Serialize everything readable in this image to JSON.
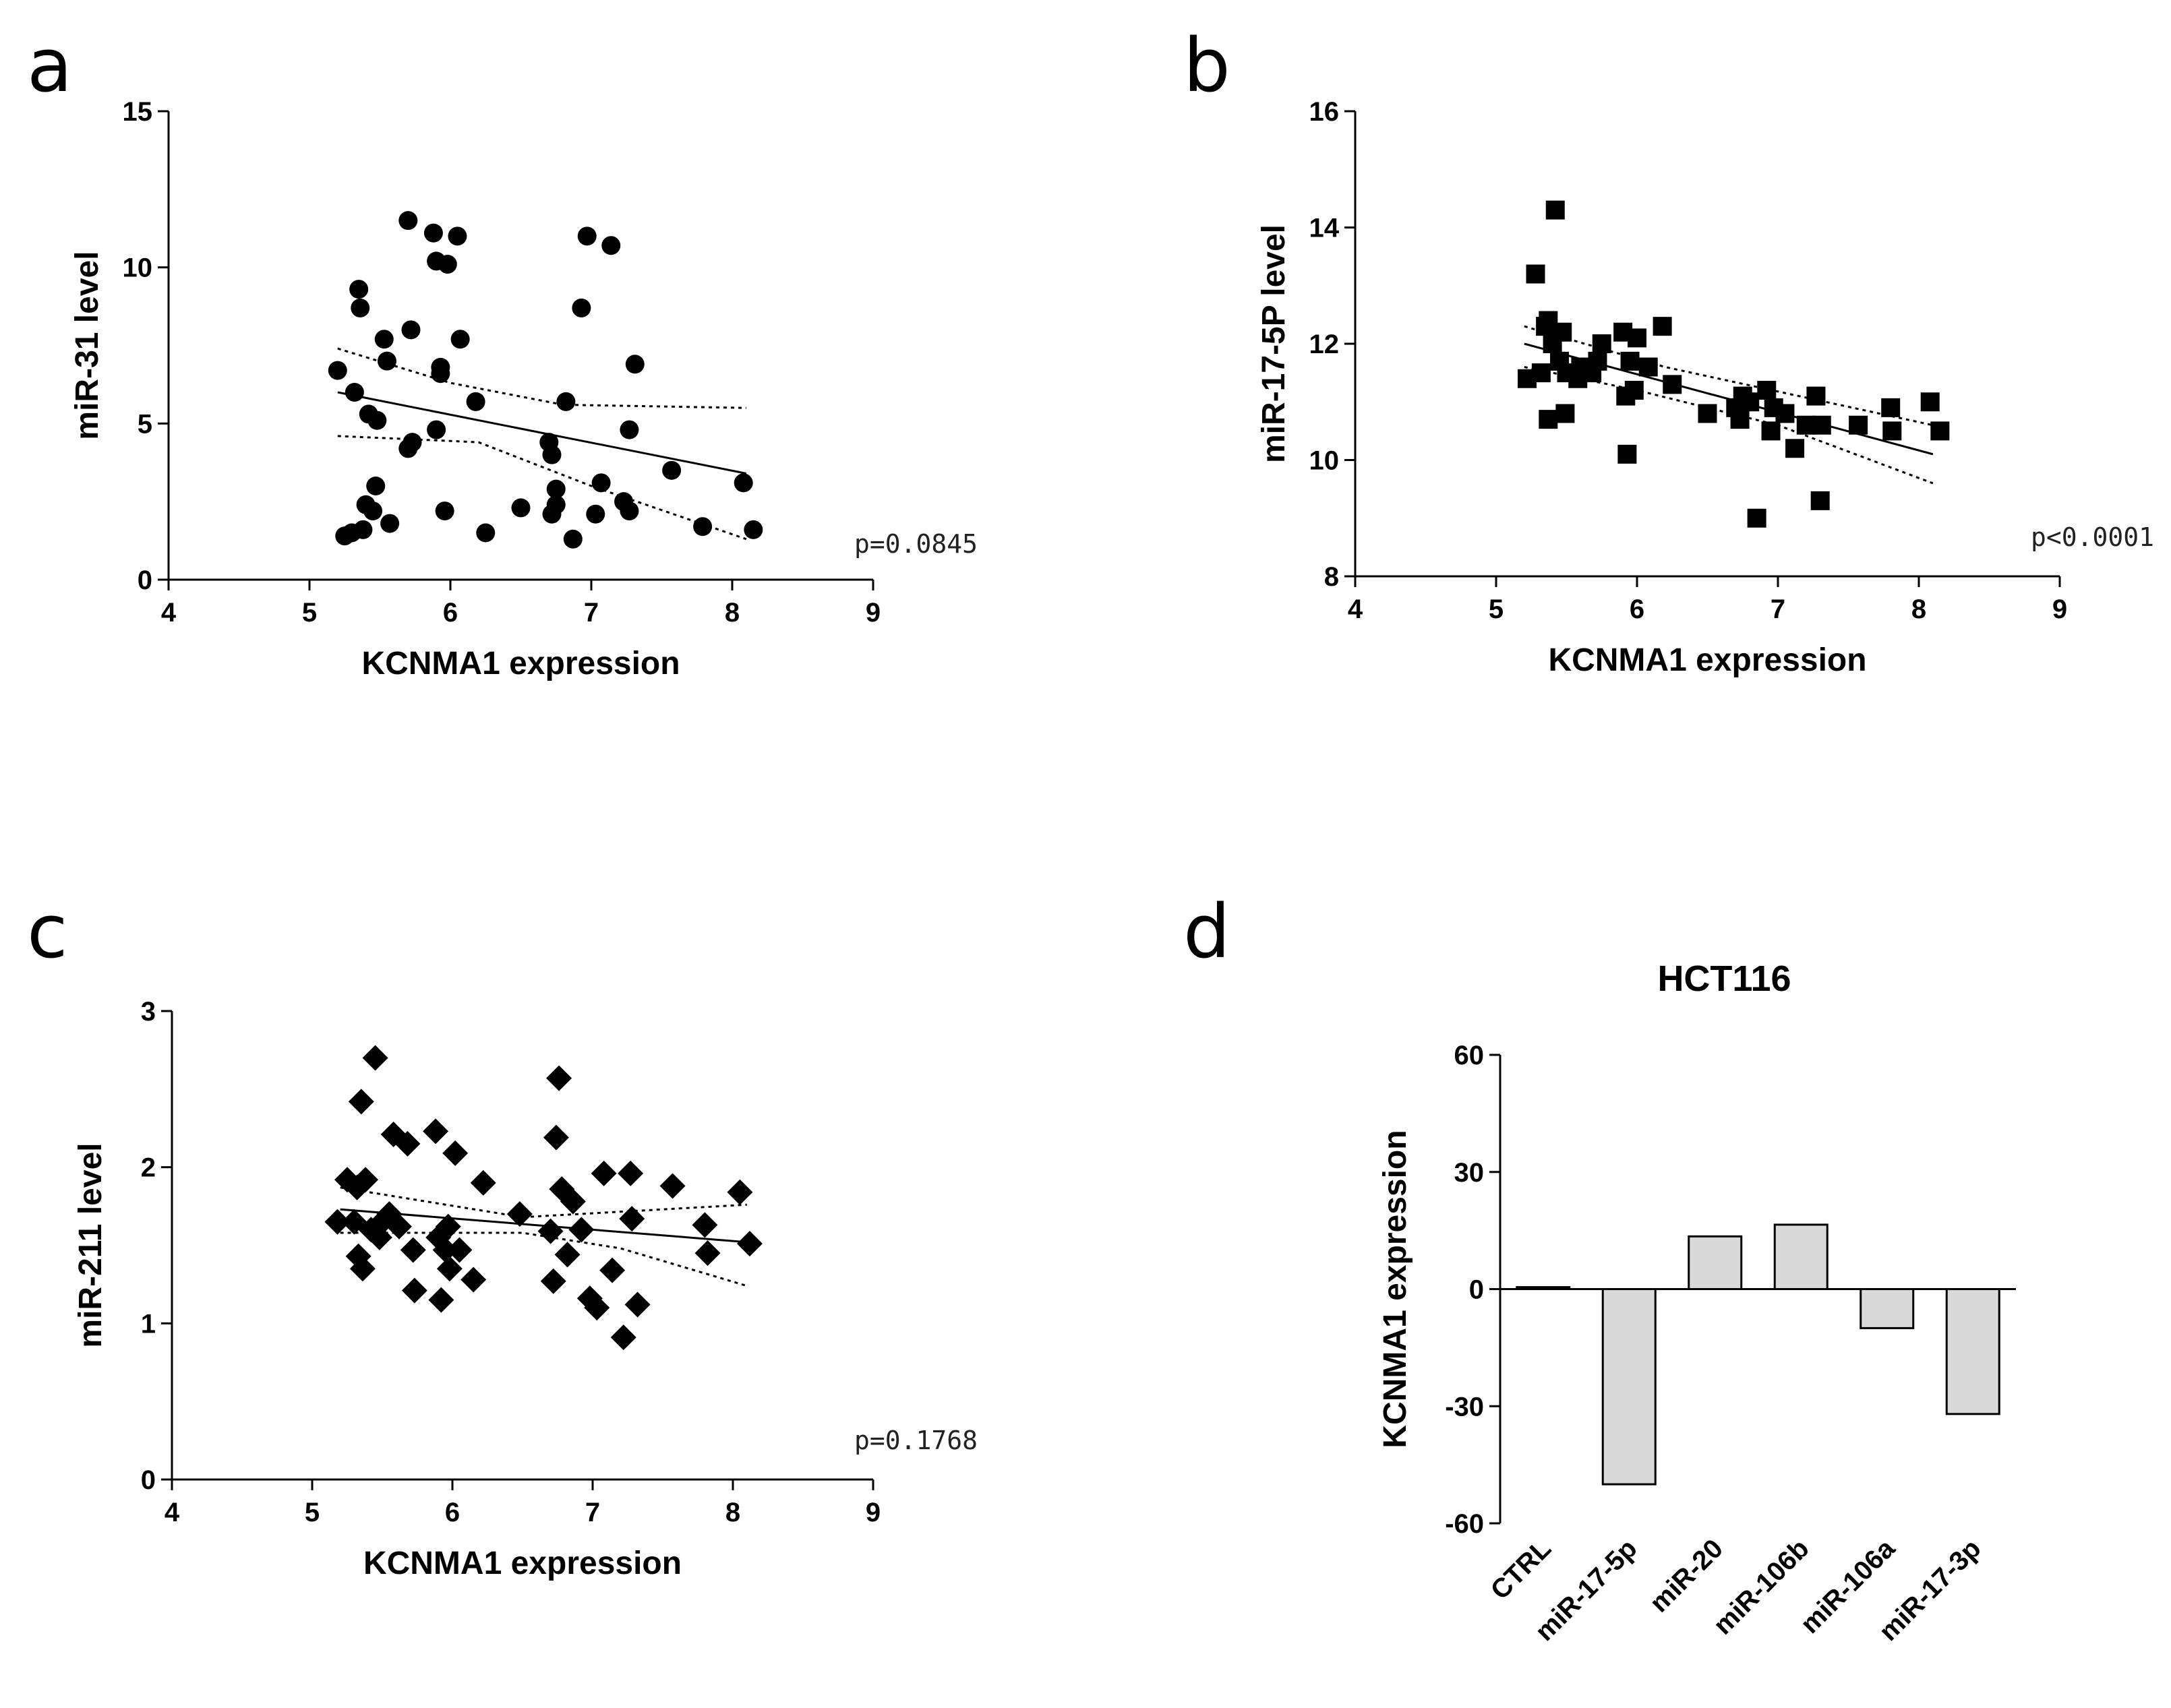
{
  "colors": {
    "marker": "#000000",
    "bar_fill": "#d9d9d9",
    "bar_stroke": "#000000"
  },
  "chart_data": [
    {
      "type": "scatter",
      "panel": "a",
      "xlabel": "KCNMA1 expression",
      "ylabel": "miR-31 level",
      "xlim": [
        4,
        9
      ],
      "ylim": [
        0,
        15
      ],
      "xticks": [
        4,
        5,
        6,
        7,
        8,
        9
      ],
      "yticks": [
        0,
        5,
        10,
        15
      ],
      "marker": "circle",
      "p_value": "p=0.0845",
      "fit": {
        "x0": 5.2,
        "y0": 6.0,
        "x1": 8.1,
        "y1": 3.4
      },
      "ci_upper": [
        [
          5.2,
          7.4
        ],
        [
          6.0,
          6.3
        ],
        [
          6.8,
          5.6
        ],
        [
          8.1,
          5.5
        ]
      ],
      "ci_lower": [
        [
          5.2,
          4.6
        ],
        [
          6.2,
          4.4
        ],
        [
          7.0,
          3.0
        ],
        [
          8.1,
          1.3
        ]
      ],
      "points": [
        [
          5.2,
          6.7
        ],
        [
          5.25,
          1.4
        ],
        [
          5.3,
          1.5
        ],
        [
          5.32,
          6.0
        ],
        [
          5.35,
          9.3
        ],
        [
          5.36,
          8.7
        ],
        [
          5.38,
          1.6
        ],
        [
          5.4,
          2.4
        ],
        [
          5.42,
          5.3
        ],
        [
          5.45,
          2.2
        ],
        [
          5.47,
          3.0
        ],
        [
          5.48,
          5.1
        ],
        [
          5.53,
          7.7
        ],
        [
          5.55,
          7.0
        ],
        [
          5.57,
          1.8
        ],
        [
          5.7,
          11.5
        ],
        [
          5.72,
          8.0
        ],
        [
          5.7,
          4.2
        ],
        [
          5.73,
          4.4
        ],
        [
          5.88,
          11.1
        ],
        [
          5.9,
          10.2
        ],
        [
          5.9,
          4.8
        ],
        [
          5.93,
          6.6
        ],
        [
          5.93,
          6.8
        ],
        [
          5.96,
          2.2
        ],
        [
          5.98,
          10.1
        ],
        [
          6.05,
          11.0
        ],
        [
          6.07,
          7.7
        ],
        [
          6.18,
          5.7
        ],
        [
          6.25,
          1.5
        ],
        [
          6.5,
          2.3
        ],
        [
          6.7,
          4.4
        ],
        [
          6.72,
          4.0
        ],
        [
          6.72,
          2.1
        ],
        [
          6.75,
          2.9
        ],
        [
          6.75,
          2.4
        ],
        [
          6.82,
          5.7
        ],
        [
          6.87,
          1.3
        ],
        [
          6.93,
          8.7
        ],
        [
          6.97,
          11.0
        ],
        [
          7.03,
          2.1
        ],
        [
          7.07,
          3.1
        ],
        [
          7.14,
          10.7
        ],
        [
          7.23,
          2.5
        ],
        [
          7.27,
          4.8
        ],
        [
          7.27,
          2.2
        ],
        [
          7.31,
          6.9
        ],
        [
          7.57,
          3.5
        ],
        [
          7.79,
          1.7
        ],
        [
          8.08,
          3.1
        ],
        [
          8.15,
          1.6
        ]
      ]
    },
    {
      "type": "scatter",
      "panel": "b",
      "xlabel": "KCNMA1 expression",
      "ylabel": "miR-17-5P level",
      "xlim": [
        4,
        9
      ],
      "ylim": [
        8,
        16
      ],
      "xticks": [
        4,
        5,
        6,
        7,
        8,
        9
      ],
      "yticks": [
        8,
        10,
        12,
        14,
        16
      ],
      "marker": "square",
      "p_value": "p<0.0001",
      "fit": {
        "x0": 5.2,
        "y0": 12.0,
        "x1": 8.1,
        "y1": 10.1
      },
      "ci_upper": [
        [
          5.2,
          12.3
        ],
        [
          6.2,
          11.6
        ],
        [
          8.1,
          10.6
        ]
      ],
      "ci_lower": [
        [
          5.2,
          11.6
        ],
        [
          6.0,
          11.2
        ],
        [
          7.0,
          10.6
        ],
        [
          8.1,
          9.6
        ]
      ],
      "points": [
        [
          5.22,
          11.4
        ],
        [
          5.28,
          13.2
        ],
        [
          5.32,
          11.5
        ],
        [
          5.35,
          12.3
        ],
        [
          5.37,
          12.4
        ],
        [
          5.37,
          10.7
        ],
        [
          5.4,
          12.0
        ],
        [
          5.42,
          14.3
        ],
        [
          5.45,
          11.7
        ],
        [
          5.47,
          12.2
        ],
        [
          5.49,
          10.8
        ],
        [
          5.5,
          11.5
        ],
        [
          5.58,
          11.4
        ],
        [
          5.6,
          11.6
        ],
        [
          5.68,
          11.5
        ],
        [
          5.72,
          11.7
        ],
        [
          5.75,
          12.0
        ],
        [
          5.9,
          12.2
        ],
        [
          5.92,
          11.1
        ],
        [
          5.93,
          10.1
        ],
        [
          5.95,
          11.7
        ],
        [
          5.98,
          11.2
        ],
        [
          6.0,
          12.1
        ],
        [
          6.08,
          11.6
        ],
        [
          6.18,
          12.3
        ],
        [
          6.25,
          11.3
        ],
        [
          6.5,
          10.8
        ],
        [
          6.7,
          10.9
        ],
        [
          6.73,
          10.7
        ],
        [
          6.75,
          11.1
        ],
        [
          6.8,
          11.0
        ],
        [
          6.85,
          9.0
        ],
        [
          6.92,
          11.2
        ],
        [
          6.95,
          10.5
        ],
        [
          6.97,
          10.9
        ],
        [
          7.05,
          10.8
        ],
        [
          7.12,
          10.2
        ],
        [
          7.2,
          10.6
        ],
        [
          7.27,
          11.1
        ],
        [
          7.3,
          9.3
        ],
        [
          7.31,
          10.6
        ],
        [
          7.57,
          10.6
        ],
        [
          7.8,
          10.9
        ],
        [
          7.81,
          10.5
        ],
        [
          8.08,
          11.0
        ],
        [
          8.15,
          10.5
        ]
      ]
    },
    {
      "type": "scatter",
      "panel": "c",
      "xlabel": "KCNMA1 expression",
      "ylabel": "miR-211 level",
      "xlim": [
        4,
        9
      ],
      "ylim": [
        0,
        3
      ],
      "xticks": [
        4,
        5,
        6,
        7,
        8,
        9
      ],
      "yticks": [
        0,
        1,
        2,
        3
      ],
      "marker": "diamond",
      "p_value": "p=0.1768",
      "fit": {
        "x0": 5.2,
        "y0": 1.73,
        "x1": 8.1,
        "y1": 1.52
      },
      "ci_upper": [
        [
          5.2,
          1.87
        ],
        [
          6.5,
          1.68
        ],
        [
          8.1,
          1.76
        ]
      ],
      "ci_lower": [
        [
          5.2,
          1.58
        ],
        [
          6.5,
          1.58
        ],
        [
          7.2,
          1.48
        ],
        [
          8.1,
          1.24
        ]
      ],
      "points": [
        [
          5.18,
          1.65
        ],
        [
          5.25,
          1.92
        ],
        [
          5.3,
          1.65
        ],
        [
          5.32,
          1.87
        ],
        [
          5.33,
          1.43
        ],
        [
          5.35,
          2.42
        ],
        [
          5.36,
          1.35
        ],
        [
          5.38,
          1.92
        ],
        [
          5.42,
          1.6
        ],
        [
          5.45,
          2.7
        ],
        [
          5.48,
          1.55
        ],
        [
          5.5,
          1.65
        ],
        [
          5.55,
          1.7
        ],
        [
          5.58,
          2.21
        ],
        [
          5.62,
          1.62
        ],
        [
          5.68,
          2.15
        ],
        [
          5.72,
          1.47
        ],
        [
          5.73,
          1.21
        ],
        [
          5.88,
          2.23
        ],
        [
          5.9,
          1.55
        ],
        [
          5.92,
          1.15
        ],
        [
          5.95,
          1.47
        ],
        [
          5.97,
          1.62
        ],
        [
          5.98,
          1.35
        ],
        [
          6.02,
          2.09
        ],
        [
          6.05,
          1.47
        ],
        [
          6.15,
          1.28
        ],
        [
          6.22,
          1.9
        ],
        [
          6.48,
          1.7
        ],
        [
          6.7,
          1.59
        ],
        [
          6.72,
          1.27
        ],
        [
          6.74,
          2.19
        ],
        [
          6.76,
          2.57
        ],
        [
          6.78,
          1.86
        ],
        [
          6.82,
          1.44
        ],
        [
          6.86,
          1.78
        ],
        [
          6.92,
          1.6
        ],
        [
          6.98,
          1.16
        ],
        [
          7.03,
          1.1
        ],
        [
          7.08,
          1.96
        ],
        [
          7.14,
          1.34
        ],
        [
          7.22,
          0.91
        ],
        [
          7.27,
          1.96
        ],
        [
          7.28,
          1.67
        ],
        [
          7.32,
          1.12
        ],
        [
          7.57,
          1.88
        ],
        [
          7.8,
          1.63
        ],
        [
          7.82,
          1.45
        ],
        [
          8.05,
          1.84
        ],
        [
          8.12,
          1.51
        ]
      ]
    },
    {
      "type": "bar",
      "panel": "d",
      "title": "HCT116",
      "ylabel": "KCNMA1 expression",
      "xlabel": "",
      "ylim": [
        -60,
        60
      ],
      "yticks": [
        -60,
        -30,
        0,
        30,
        60
      ],
      "ytick_labels": [
        "-60",
        "-30",
        "0",
        "30",
        "60"
      ],
      "categories": [
        "CTRL",
        "miR-17-5p",
        "miR-20",
        "miR-106b",
        "miR-106a",
        "miR-17-3p"
      ],
      "values": [
        0.5,
        -50,
        13.5,
        16.5,
        -10,
        -32
      ]
    }
  ]
}
